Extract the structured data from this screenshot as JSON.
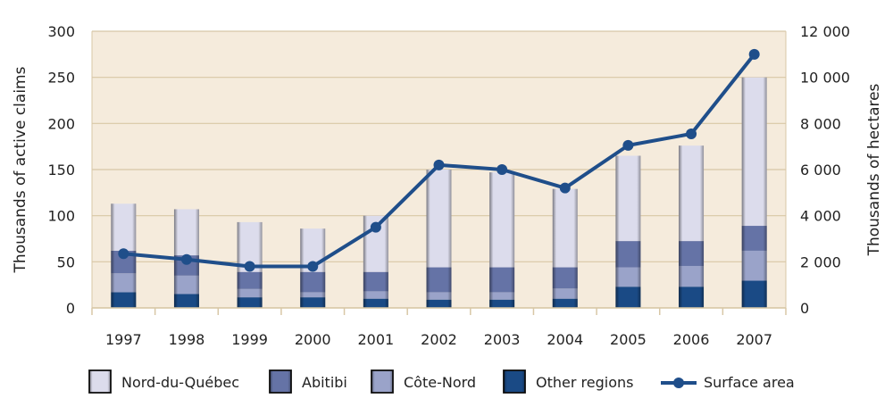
{
  "chart_data": {
    "type": "bar",
    "stacked": true,
    "categories": [
      "1997",
      "1998",
      "1999",
      "2000",
      "2001",
      "2002",
      "2003",
      "2004",
      "2005",
      "2006",
      "2007"
    ],
    "series": [
      {
        "name": "Other regions",
        "values": [
          17,
          15,
          11.5,
          11.5,
          10,
          9,
          9,
          10,
          23,
          23,
          29.5
        ],
        "color": "#1a4a85"
      },
      {
        "name": "Côte-Nord",
        "values": [
          20.5,
          20,
          9,
          5.5,
          8,
          8,
          8,
          11,
          21,
          22.5,
          32.5
        ],
        "color": "#9aa3c9"
      },
      {
        "name": "Abitibi",
        "values": [
          24.5,
          22,
          18.5,
          22,
          21,
          27,
          27,
          23,
          28.5,
          27,
          27
        ],
        "color": "#6573a6"
      },
      {
        "name": "Nord-du-Québec",
        "values": [
          51,
          50,
          54,
          47,
          61,
          106,
          103,
          85,
          92.5,
          103.5,
          161
        ],
        "color": "#dcdcec"
      }
    ],
    "line_series": {
      "name": "Surface area",
      "axis": "right",
      "values": [
        2350,
        2100,
        1800,
        1800,
        3500,
        6200,
        6000,
        5200,
        7050,
        7550,
        11000
      ],
      "color": "#1f4e8a"
    },
    "ylabel": "Thousands of active claims",
    "y2label": "Thousands of hectares",
    "ylim": [
      0,
      300
    ],
    "y2lim": [
      0,
      12000
    ],
    "yticks": [
      "0",
      "50",
      "100",
      "150",
      "200",
      "250",
      "300"
    ],
    "y2ticks": [
      "0",
      "2 000",
      "4 000",
      "6 000",
      "8 000",
      "10 000",
      "12 000"
    ],
    "grid": true,
    "legend_position": "bottom",
    "legend": [
      "Nord-du-Québec",
      "Abitibi",
      "Côte-Nord",
      "Other regions",
      "Surface area"
    ],
    "background_color": "#f5ebdc"
  }
}
